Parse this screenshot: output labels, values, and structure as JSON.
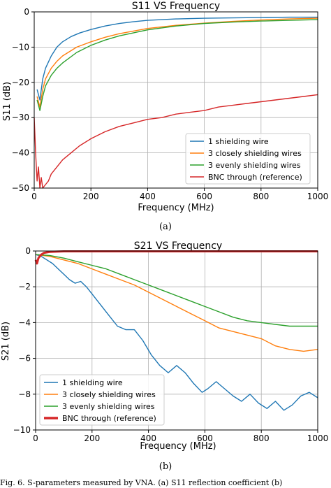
{
  "chart_data": [
    {
      "type": "line",
      "title": "S11 VS Frequency",
      "xlabel": "Frequency (MHz)",
      "ylabel": "S11 (dB)",
      "xlim": [
        0,
        1000
      ],
      "ylim": [
        -50,
        0
      ],
      "xticks": [
        "0",
        "200",
        "400",
        "600",
        "800",
        "1000"
      ],
      "yticks": [
        "0",
        "−10",
        "−20",
        "−30",
        "−40",
        "−50"
      ],
      "grid": true,
      "legend_position": "lower right",
      "series": [
        {
          "name": "1 shielding wire",
          "color": "#1f77b4",
          "x": [
            10,
            20,
            30,
            40,
            60,
            80,
            100,
            130,
            160,
            200,
            250,
            300,
            350,
            400,
            500,
            600,
            700,
            800,
            900,
            1000
          ],
          "y": [
            -22,
            -25,
            -19,
            -16,
            -12.5,
            -10,
            -8.5,
            -7,
            -6,
            -5,
            -4,
            -3.3,
            -2.8,
            -2.4,
            -2,
            -1.8,
            -1.7,
            -1.6,
            -1.5,
            -1.5
          ]
        },
        {
          "name": "3 closely shielding wires",
          "color": "#ff7f0e",
          "x": [
            10,
            20,
            30,
            40,
            60,
            80,
            100,
            150,
            200,
            250,
            300,
            400,
            500,
            600,
            700,
            800,
            900,
            1000
          ],
          "y": [
            -24,
            -27,
            -22,
            -19,
            -16,
            -14,
            -12.5,
            -10,
            -8.5,
            -7.2,
            -6.2,
            -4.7,
            -3.8,
            -3.2,
            -2.7,
            -2.3,
            -2,
            -1.8
          ]
        },
        {
          "name": "3 evenly shielding wires",
          "color": "#2ca02c",
          "x": [
            10,
            20,
            30,
            40,
            60,
            80,
            100,
            150,
            200,
            250,
            300,
            400,
            500,
            600,
            700,
            800,
            900,
            1000
          ],
          "y": [
            -25,
            -28,
            -24,
            -21,
            -18,
            -16,
            -14.5,
            -11.5,
            -9.5,
            -8,
            -6.8,
            -5.1,
            -4,
            -3.3,
            -2.9,
            -2.6,
            -2.4,
            -2.2
          ]
        },
        {
          "name": "BNC through (reference)",
          "color": "#d62728",
          "x": [
            0,
            5,
            10,
            15,
            20,
            25,
            30,
            40,
            50,
            60,
            80,
            100,
            130,
            160,
            200,
            250,
            300,
            350,
            400,
            450,
            500,
            550,
            600,
            650,
            700,
            750,
            800,
            850,
            900,
            950,
            1000
          ],
          "y": [
            -30,
            -40,
            -48,
            -44,
            -50,
            -47,
            -50,
            -49,
            -48,
            -46,
            -44,
            -42,
            -40,
            -38,
            -36,
            -34,
            -32.5,
            -31.5,
            -30.5,
            -30,
            -29,
            -28.5,
            -28,
            -27,
            -26.5,
            -26,
            -25.5,
            -25,
            -24.5,
            -24,
            -23.5
          ]
        }
      ]
    },
    {
      "type": "line",
      "title": "S21 VS Frequency",
      "xlabel": "Frequency (MHz)",
      "ylabel": "S21 (dB)",
      "xlim": [
        0,
        1000
      ],
      "ylim": [
        -10,
        0
      ],
      "xticks": [
        "0",
        "200",
        "400",
        "600",
        "800",
        "1000"
      ],
      "yticks": [
        "0",
        "−2",
        "−4",
        "−6",
        "−8",
        "−10"
      ],
      "grid": true,
      "legend_position": "lower left",
      "series": [
        {
          "name": "1 shielding wire",
          "color": "#1f77b4",
          "x": [
            0,
            20,
            40,
            60,
            80,
            100,
            120,
            140,
            160,
            180,
            200,
            230,
            260,
            290,
            320,
            350,
            380,
            410,
            440,
            470,
            500,
            530,
            560,
            590,
            610,
            640,
            670,
            700,
            730,
            760,
            790,
            820,
            850,
            880,
            910,
            940,
            970,
            1000
          ],
          "y": [
            -0.2,
            -0.3,
            -0.5,
            -0.7,
            -1.0,
            -1.3,
            -1.6,
            -1.8,
            -1.7,
            -2.0,
            -2.4,
            -3.0,
            -3.6,
            -4.2,
            -4.4,
            -4.4,
            -5.0,
            -5.8,
            -6.4,
            -6.8,
            -6.4,
            -6.8,
            -7.4,
            -7.9,
            -7.7,
            -7.3,
            -7.7,
            -8.1,
            -8.4,
            -8.0,
            -8.5,
            -8.8,
            -8.4,
            -8.9,
            -8.6,
            -8.1,
            -7.9,
            -8.2
          ]
        },
        {
          "name": "3 closely shielding wires",
          "color": "#ff7f0e",
          "x": [
            0,
            50,
            100,
            150,
            200,
            250,
            300,
            350,
            400,
            450,
            500,
            550,
            600,
            650,
            700,
            750,
            800,
            850,
            900,
            950,
            1000
          ],
          "y": [
            -0.2,
            -0.3,
            -0.5,
            -0.7,
            -1.0,
            -1.3,
            -1.6,
            -1.9,
            -2.3,
            -2.7,
            -3.1,
            -3.5,
            -3.9,
            -4.3,
            -4.5,
            -4.7,
            -4.9,
            -5.3,
            -5.5,
            -5.6,
            -5.5
          ]
        },
        {
          "name": "3 evenly shielding wires",
          "color": "#2ca02c",
          "x": [
            0,
            50,
            100,
            150,
            200,
            250,
            300,
            350,
            400,
            450,
            500,
            550,
            600,
            650,
            700,
            750,
            800,
            850,
            900,
            950,
            1000
          ],
          "y": [
            -0.2,
            -0.25,
            -0.4,
            -0.6,
            -0.8,
            -1.0,
            -1.3,
            -1.6,
            -1.9,
            -2.2,
            -2.5,
            -2.8,
            -3.1,
            -3.4,
            -3.7,
            -3.9,
            -4.0,
            -4.1,
            -4.2,
            -4.2,
            -4.2
          ]
        },
        {
          "name": "BNC through (reference)",
          "color": "#d62728",
          "x": [
            0,
            5,
            10,
            20,
            30,
            50,
            100,
            200,
            400,
            600,
            800,
            1000
          ],
          "y": [
            -0.5,
            -0.7,
            -0.4,
            -0.2,
            -0.1,
            -0.05,
            -0.02,
            -0.02,
            -0.02,
            -0.02,
            -0.02,
            -0.02
          ]
        }
      ]
    }
  ],
  "captions": [
    "(a)",
    "(b)"
  ],
  "footer_text": "Fig. 6. S-parameters measured by VNA. (a) S11 reflection coefficient (b)"
}
